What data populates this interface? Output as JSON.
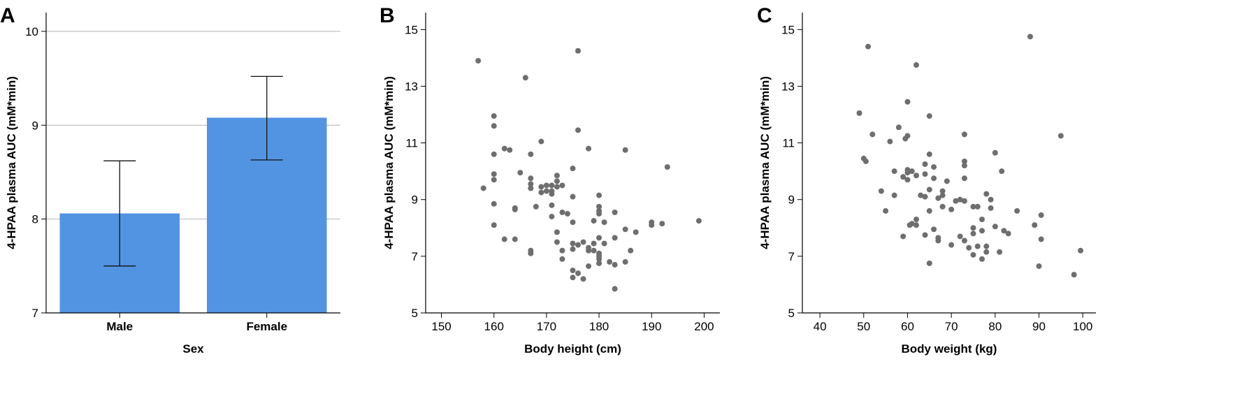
{
  "chart_data": [
    {
      "type": "bar",
      "panel_label": "A",
      "categories": [
        "Male",
        "Female"
      ],
      "values": [
        8.06,
        9.08
      ],
      "error_low": [
        7.5,
        8.63
      ],
      "error_high": [
        8.62,
        9.52
      ],
      "xlabel": "Sex",
      "ylabel": "4-HPAA plasma AUC (mM*min)",
      "ylim": [
        7,
        10.2
      ],
      "yticks": [
        7,
        8,
        9,
        10
      ],
      "ytick_labels": [
        "7",
        "8",
        "9",
        "10"
      ],
      "grid": "horizontal",
      "bar_color": "#5294e2"
    },
    {
      "type": "scatter",
      "panel_label": "B",
      "xlabel": "Body height (cm)",
      "ylabel": "4-HPAA plasma AUC (mM*min)",
      "xlim": [
        147,
        203
      ],
      "ylim": [
        5,
        15.6
      ],
      "xticks": [
        150,
        160,
        170,
        180,
        190,
        200
      ],
      "xtick_labels": [
        "150",
        "160",
        "170",
        "180",
        "190",
        "200"
      ],
      "yticks": [
        5,
        7,
        9,
        11,
        13,
        15
      ],
      "ytick_labels": [
        "5",
        "7",
        "9",
        "11",
        "13",
        "15"
      ],
      "point_color": "#6e6e6e",
      "points": [
        [
          157,
          13.9
        ],
        [
          158,
          9.4
        ],
        [
          160,
          11.95
        ],
        [
          160,
          11.6
        ],
        [
          160,
          10.6
        ],
        [
          160,
          9.9
        ],
        [
          160,
          9.7
        ],
        [
          160,
          8.85
        ],
        [
          160,
          8.1
        ],
        [
          162,
          10.8
        ],
        [
          162,
          7.6
        ],
        [
          163,
          10.75
        ],
        [
          164,
          8.7
        ],
        [
          164,
          8.65
        ],
        [
          164,
          7.6
        ],
        [
          165,
          9.95
        ],
        [
          166,
          13.3
        ],
        [
          167,
          10.6
        ],
        [
          167,
          9.75
        ],
        [
          167,
          9.55
        ],
        [
          167,
          9.4
        ],
        [
          167,
          7.2
        ],
        [
          167,
          7.1
        ],
        [
          168,
          8.75
        ],
        [
          169,
          11.05
        ],
        [
          169,
          9.45
        ],
        [
          169,
          9.25
        ],
        [
          170,
          9.5
        ],
        [
          170,
          9.3
        ],
        [
          171,
          9.5
        ],
        [
          171,
          9.3
        ],
        [
          171,
          9.2
        ],
        [
          171,
          8.8
        ],
        [
          171,
          8.4
        ],
        [
          172,
          9.85
        ],
        [
          172,
          9.65
        ],
        [
          172,
          9.45
        ],
        [
          172,
          7.85
        ],
        [
          172,
          7.5
        ],
        [
          173,
          9.5
        ],
        [
          173,
          8.55
        ],
        [
          173,
          7.2
        ],
        [
          173,
          6.9
        ],
        [
          174,
          8.5
        ],
        [
          175,
          10.1
        ],
        [
          175,
          9.1
        ],
        [
          175,
          8.2
        ],
        [
          175,
          7.45
        ],
        [
          175,
          7.25
        ],
        [
          175,
          6.5
        ],
        [
          175,
          6.25
        ],
        [
          176,
          14.25
        ],
        [
          176,
          11.45
        ],
        [
          176,
          7.4
        ],
        [
          176,
          6.4
        ],
        [
          177,
          7.5
        ],
        [
          177,
          6.2
        ],
        [
          178,
          10.8
        ],
        [
          178,
          7.3
        ],
        [
          178,
          7.2
        ],
        [
          178,
          6.65
        ],
        [
          179,
          8.25
        ],
        [
          179,
          7.45
        ],
        [
          179,
          7.2
        ],
        [
          180,
          9.15
        ],
        [
          180,
          8.75
        ],
        [
          180,
          8.6
        ],
        [
          180,
          8.5
        ],
        [
          180,
          7.65
        ],
        [
          180,
          7.1
        ],
        [
          180,
          7.0
        ],
        [
          180,
          6.9
        ],
        [
          180,
          6.75
        ],
        [
          181,
          8.2
        ],
        [
          181,
          7.45
        ],
        [
          182,
          6.8
        ],
        [
          183,
          8.55
        ],
        [
          183,
          7.65
        ],
        [
          183,
          6.7
        ],
        [
          183,
          5.85
        ],
        [
          185,
          10.75
        ],
        [
          185,
          7.95
        ],
        [
          185,
          6.8
        ],
        [
          186,
          7.2
        ],
        [
          187,
          7.85
        ],
        [
          190,
          8.2
        ],
        [
          190,
          8.1
        ],
        [
          192,
          8.15
        ],
        [
          193,
          10.15
        ],
        [
          199,
          8.25
        ]
      ]
    },
    {
      "type": "scatter",
      "panel_label": "C",
      "xlabel": "Body weight (kg)",
      "ylabel": "4-HPAA plasma AUC (mM*min)",
      "xlim": [
        36,
        103
      ],
      "ylim": [
        5,
        15.6
      ],
      "xticks": [
        40,
        50,
        60,
        70,
        80,
        90,
        100
      ],
      "xtick_labels": [
        "40",
        "50",
        "60",
        "70",
        "80",
        "90",
        "100"
      ],
      "yticks": [
        5,
        7,
        9,
        11,
        13,
        15
      ],
      "ytick_labels": [
        "5",
        "7",
        "9",
        "11",
        "13",
        "15"
      ],
      "point_color": "#6e6e6e",
      "points": [
        [
          49,
          12.05
        ],
        [
          50,
          10.45
        ],
        [
          50.5,
          10.35
        ],
        [
          51,
          14.4
        ],
        [
          52,
          11.3
        ],
        [
          54,
          9.3
        ],
        [
          55,
          8.6
        ],
        [
          56,
          11.05
        ],
        [
          57,
          10.0
        ],
        [
          57,
          9.15
        ],
        [
          58,
          11.55
        ],
        [
          59,
          9.8
        ],
        [
          59,
          7.7
        ],
        [
          59.5,
          11.15
        ],
        [
          60,
          12.45
        ],
        [
          60,
          11.25
        ],
        [
          60,
          10.05
        ],
        [
          60,
          9.95
        ],
        [
          60,
          9.7
        ],
        [
          60.5,
          8.1
        ],
        [
          61,
          10.0
        ],
        [
          61,
          8.15
        ],
        [
          62,
          13.75
        ],
        [
          62,
          9.85
        ],
        [
          62,
          8.3
        ],
        [
          62,
          8.1
        ],
        [
          63,
          9.15
        ],
        [
          64,
          10.25
        ],
        [
          64,
          9.9
        ],
        [
          64,
          9.1
        ],
        [
          64,
          7.75
        ],
        [
          65,
          11.95
        ],
        [
          65,
          10.6
        ],
        [
          65,
          9.35
        ],
        [
          65,
          8.6
        ],
        [
          65,
          6.75
        ],
        [
          66,
          10.15
        ],
        [
          66,
          9.75
        ],
        [
          66,
          7.95
        ],
        [
          67,
          9.05
        ],
        [
          67,
          7.65
        ],
        [
          67,
          7.55
        ],
        [
          68,
          9.3
        ],
        [
          68,
          9.15
        ],
        [
          68,
          8.75
        ],
        [
          69,
          9.65
        ],
        [
          70,
          8.65
        ],
        [
          70,
          7.4
        ],
        [
          71,
          8.95
        ],
        [
          72,
          9.0
        ],
        [
          72,
          7.7
        ],
        [
          73,
          11.3
        ],
        [
          73,
          10.35
        ],
        [
          73,
          10.2
        ],
        [
          73,
          9.75
        ],
        [
          73,
          8.95
        ],
        [
          73,
          7.55
        ],
        [
          74,
          7.3
        ],
        [
          75,
          8.75
        ],
        [
          75,
          8.0
        ],
        [
          75,
          7.8
        ],
        [
          75,
          7.05
        ],
        [
          76,
          8.75
        ],
        [
          76,
          7.35
        ],
        [
          77,
          8.3
        ],
        [
          77,
          7.9
        ],
        [
          77,
          6.9
        ],
        [
          78,
          9.2
        ],
        [
          78,
          7.35
        ],
        [
          78,
          7.15
        ],
        [
          79,
          9.0
        ],
        [
          79,
          8.7
        ],
        [
          80,
          10.65
        ],
        [
          80,
          8.05
        ],
        [
          81,
          7.15
        ],
        [
          81.5,
          10.0
        ],
        [
          82,
          7.9
        ],
        [
          83,
          7.8
        ],
        [
          85,
          8.6
        ],
        [
          88,
          14.75
        ],
        [
          89,
          8.1
        ],
        [
          90,
          6.65
        ],
        [
          90.5,
          8.45
        ],
        [
          90.5,
          7.6
        ],
        [
          95,
          11.25
        ],
        [
          98,
          6.35
        ],
        [
          99.5,
          7.2
        ]
      ]
    }
  ]
}
